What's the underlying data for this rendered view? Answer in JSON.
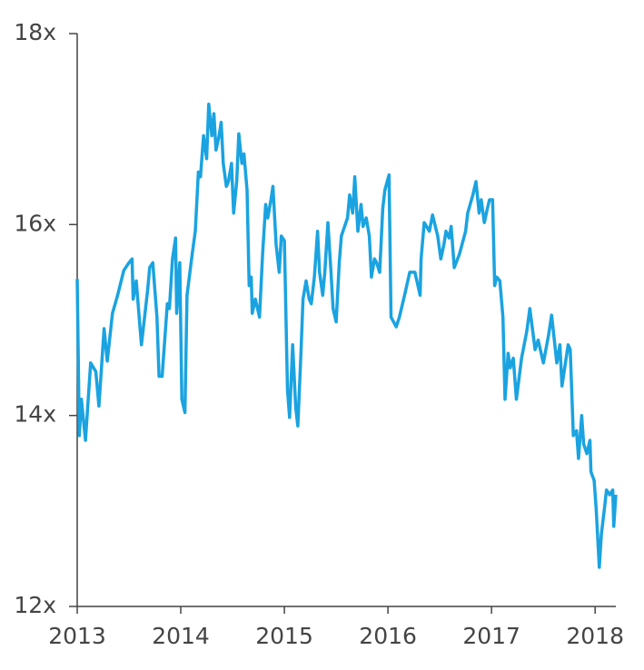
{
  "chart_data": {
    "type": "line",
    "xlim": [
      2013,
      2018.2
    ],
    "xticks": [
      2013,
      2014,
      2015,
      2016,
      2017,
      2018
    ],
    "ylim": [
      12,
      18
    ],
    "yticks": [
      {
        "value": 12,
        "label": "12x"
      },
      {
        "value": 14,
        "label": "14x"
      },
      {
        "value": 16,
        "label": "16x"
      },
      {
        "value": 18,
        "label": "18x"
      }
    ],
    "grid": false,
    "series": [
      {
        "color": "#1aa3e0",
        "x": [
          2013.0,
          2013.02,
          2013.04,
          2013.08,
          2013.13,
          2013.18,
          2013.21,
          2013.26,
          2013.29,
          2013.34,
          2013.39,
          2013.45,
          2013.5,
          2013.53,
          2013.54,
          2013.57,
          2013.62,
          2013.68,
          2013.7,
          2013.73,
          2013.77,
          2013.79,
          2013.82,
          2013.87,
          2013.89,
          2013.92,
          2013.95,
          2013.96,
          2013.99,
          2014.01,
          2014.04,
          2014.06,
          2014.11,
          2014.14,
          2014.17,
          2014.19,
          2014.22,
          2014.25,
          2014.27,
          2014.3,
          2014.32,
          2014.34,
          2014.37,
          2014.39,
          2014.41,
          2014.44,
          2014.46,
          2014.49,
          2014.51,
          2014.54,
          2014.56,
          2014.59,
          2014.61,
          2014.64,
          2014.66,
          2014.68,
          2014.69,
          2014.72,
          2014.76,
          2014.79,
          2014.82,
          2014.84,
          2014.87,
          2014.89,
          2014.92,
          2014.95,
          2014.97,
          2015.0,
          2015.03,
          2015.05,
          2015.08,
          2015.11,
          2015.13,
          2015.16,
          2015.18,
          2015.21,
          2015.24,
          2015.26,
          2015.29,
          2015.32,
          2015.34,
          2015.37,
          2015.39,
          2015.42,
          2015.45,
          2015.47,
          2015.5,
          2015.53,
          2015.55,
          2015.61,
          2015.63,
          2015.66,
          2015.68,
          2015.71,
          2015.74,
          2015.76,
          2015.79,
          2015.82,
          2015.84,
          2015.87,
          2015.89,
          2015.92,
          2015.95,
          2015.97,
          2016.01,
          2016.03,
          2016.08,
          2016.11,
          2016.16,
          2016.21,
          2016.26,
          2016.31,
          2016.32,
          2016.35,
          2016.4,
          2016.43,
          2016.48,
          2016.51,
          2016.54,
          2016.56,
          2016.59,
          2016.61,
          2016.64,
          2016.69,
          2016.75,
          2016.77,
          2016.82,
          2016.85,
          2016.88,
          2016.9,
          2016.93,
          2016.96,
          2016.98,
          2017.01,
          2017.03,
          2017.05,
          2017.08,
          2017.11,
          2017.13,
          2017.16,
          2017.18,
          2017.21,
          2017.24,
          2017.29,
          2017.34,
          2017.37,
          2017.42,
          2017.45,
          2017.5,
          2017.55,
          2017.58,
          2017.63,
          2017.66,
          2017.68,
          2017.74,
          2017.76,
          2017.79,
          2017.82,
          2017.84,
          2017.87,
          2017.89,
          2017.92,
          2017.95,
          2017.96,
          2017.99,
          2018.01,
          2018.04,
          2018.06,
          2018.09,
          2018.11,
          2018.14,
          2018.17,
          2018.18,
          2018.2
        ],
        "values": [
          15.43,
          13.79,
          14.17,
          13.74,
          14.55,
          14.46,
          14.1,
          14.91,
          14.57,
          15.07,
          15.26,
          15.52,
          15.6,
          15.64,
          15.22,
          15.41,
          14.74,
          15.31,
          15.55,
          15.6,
          15.03,
          14.41,
          14.41,
          15.17,
          15.12,
          15.64,
          15.86,
          15.07,
          15.6,
          14.17,
          14.03,
          15.26,
          15.69,
          15.93,
          16.55,
          16.5,
          16.93,
          16.69,
          17.26,
          16.93,
          17.16,
          16.78,
          16.93,
          17.07,
          16.64,
          16.4,
          16.45,
          16.64,
          16.12,
          16.45,
          16.95,
          16.64,
          16.74,
          16.36,
          15.36,
          15.45,
          15.07,
          15.22,
          15.03,
          15.69,
          16.21,
          16.07,
          16.26,
          16.4,
          15.79,
          15.5,
          15.88,
          15.83,
          14.27,
          13.98,
          14.74,
          14.08,
          13.89,
          14.65,
          15.22,
          15.41,
          15.22,
          15.17,
          15.45,
          15.93,
          15.5,
          15.26,
          15.5,
          16.02,
          15.5,
          15.12,
          14.98,
          15.6,
          15.88,
          16.07,
          16.31,
          16.12,
          16.5,
          15.93,
          16.21,
          15.98,
          16.07,
          15.88,
          15.45,
          15.64,
          15.6,
          15.5,
          16.17,
          16.36,
          16.52,
          15.03,
          14.93,
          15.03,
          15.26,
          15.5,
          15.5,
          15.26,
          15.64,
          16.02,
          15.93,
          16.1,
          15.88,
          15.64,
          15.79,
          15.93,
          15.86,
          15.98,
          15.55,
          15.69,
          15.93,
          16.12,
          16.31,
          16.45,
          16.12,
          16.26,
          16.02,
          16.17,
          16.26,
          16.26,
          15.36,
          15.45,
          15.41,
          15.03,
          14.17,
          14.65,
          14.5,
          14.6,
          14.17,
          14.6,
          14.88,
          15.12,
          14.69,
          14.79,
          14.55,
          14.84,
          15.05,
          14.55,
          14.74,
          14.31,
          14.74,
          14.69,
          13.79,
          13.84,
          13.55,
          14.0,
          13.7,
          13.6,
          13.74,
          13.41,
          13.32,
          13.03,
          12.41,
          12.75,
          13.03,
          13.22,
          13.17,
          13.22,
          12.84,
          13.17
        ]
      }
    ]
  }
}
